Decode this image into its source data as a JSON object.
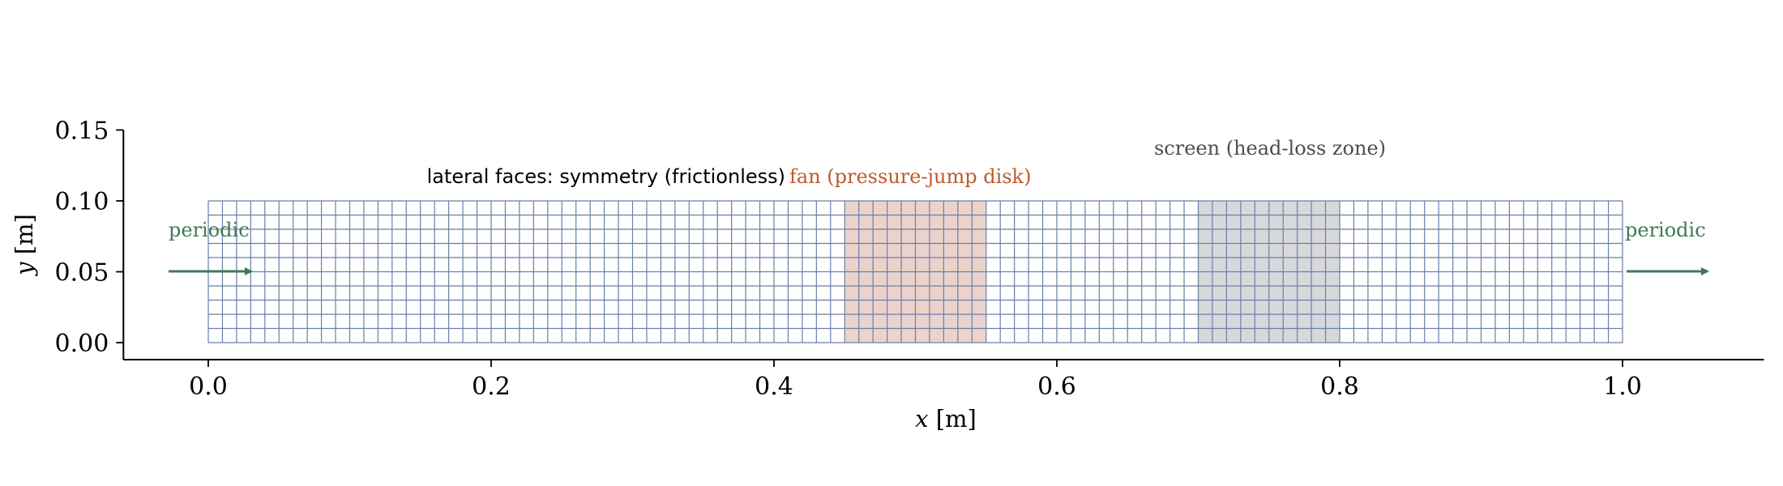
{
  "axes": {
    "x_label_var": "x",
    "x_label_unit": "[m]",
    "y_label_var": "y",
    "y_label_unit": "[m]",
    "x_ticks": [
      "0.0",
      "0.2",
      "0.4",
      "0.6",
      "0.8",
      "1.0"
    ],
    "x_tick_values": [
      0.0,
      0.2,
      0.4,
      0.6,
      0.8,
      1.0
    ],
    "y_ticks": [
      "0.00",
      "0.05",
      "0.10",
      "0.15"
    ],
    "y_tick_values": [
      0.0,
      0.05,
      0.1,
      0.15
    ],
    "xlim": [
      -0.06,
      1.1
    ],
    "ylim": [
      -0.012,
      0.15
    ]
  },
  "domain": {
    "length_m": 1.0,
    "height_m": 0.1,
    "cells_x": 100,
    "cells_y": 10,
    "grid_color": "#6a7fab"
  },
  "zones": {
    "fan": {
      "label": "fan (pressure-jump disk)",
      "x_range": [
        0.45,
        0.55
      ],
      "fill": "#ebd3cc",
      "text_color": "#c0592b"
    },
    "screen": {
      "label": "screen (head-loss zone)",
      "x_range": [
        0.7,
        0.8
      ],
      "fill": "#d8d8db",
      "text_color": "#4d4d4d"
    }
  },
  "annotations": {
    "lateral_faces": "lateral faces: symmetry (frictionless)",
    "periodic_left": "periodic",
    "periodic_right": "periodic",
    "periodic_color": "#3d7a55"
  }
}
